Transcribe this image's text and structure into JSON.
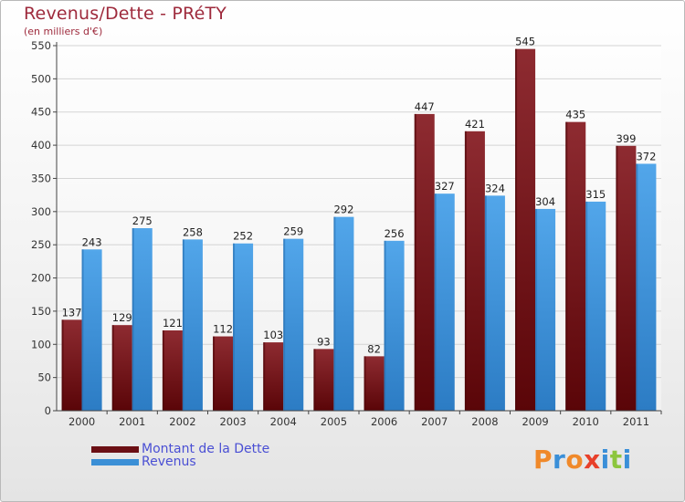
{
  "title": "Revenus/Dette - PRéTY",
  "subtitle": "(en milliers d'€)",
  "chart_data": {
    "type": "bar",
    "title": "Revenus/Dette - PRéTY",
    "ylabel": "(en milliers d'€)",
    "xlabel": "",
    "categories": [
      "2000",
      "2001",
      "2002",
      "2003",
      "2004",
      "2005",
      "2006",
      "2007",
      "2008",
      "2009",
      "2010",
      "2011"
    ],
    "series": [
      {
        "name": "Montant de la Dette",
        "color": "#6b0f14",
        "values": [
          137,
          129,
          121,
          112,
          103,
          93,
          82,
          447,
          421,
          545,
          435,
          399
        ]
      },
      {
        "name": "Revenus",
        "color": "#3b8fd6",
        "values": [
          243,
          275,
          258,
          252,
          259,
          292,
          256,
          327,
          324,
          304,
          315,
          372
        ]
      }
    ],
    "ylim": [
      0,
      550
    ],
    "yticks": [
      0,
      50,
      100,
      150,
      200,
      250,
      300,
      350,
      400,
      450,
      500,
      550
    ],
    "grid": true,
    "legend": "bottom-left"
  },
  "legend": {
    "items": [
      {
        "label": "Montant de la Dette",
        "color": "#6b0f14",
        "text_color": "#4a4fd4"
      },
      {
        "label": "Revenus",
        "color": "#3b8fd6",
        "text_color": "#4a4fd4"
      }
    ]
  },
  "logo": {
    "text": "Proxiti",
    "letters": [
      {
        "ch": "P",
        "color": "#f0892a"
      },
      {
        "ch": "r",
        "color": "#3a8fd8"
      },
      {
        "ch": "o",
        "color": "#f0892a"
      },
      {
        "ch": "x",
        "color": "#e8402a"
      },
      {
        "ch": "i",
        "color": "#3a8fd8"
      },
      {
        "ch": "t",
        "color": "#8cc63e"
      },
      {
        "ch": "i",
        "color": "#3a8fd8"
      }
    ]
  }
}
